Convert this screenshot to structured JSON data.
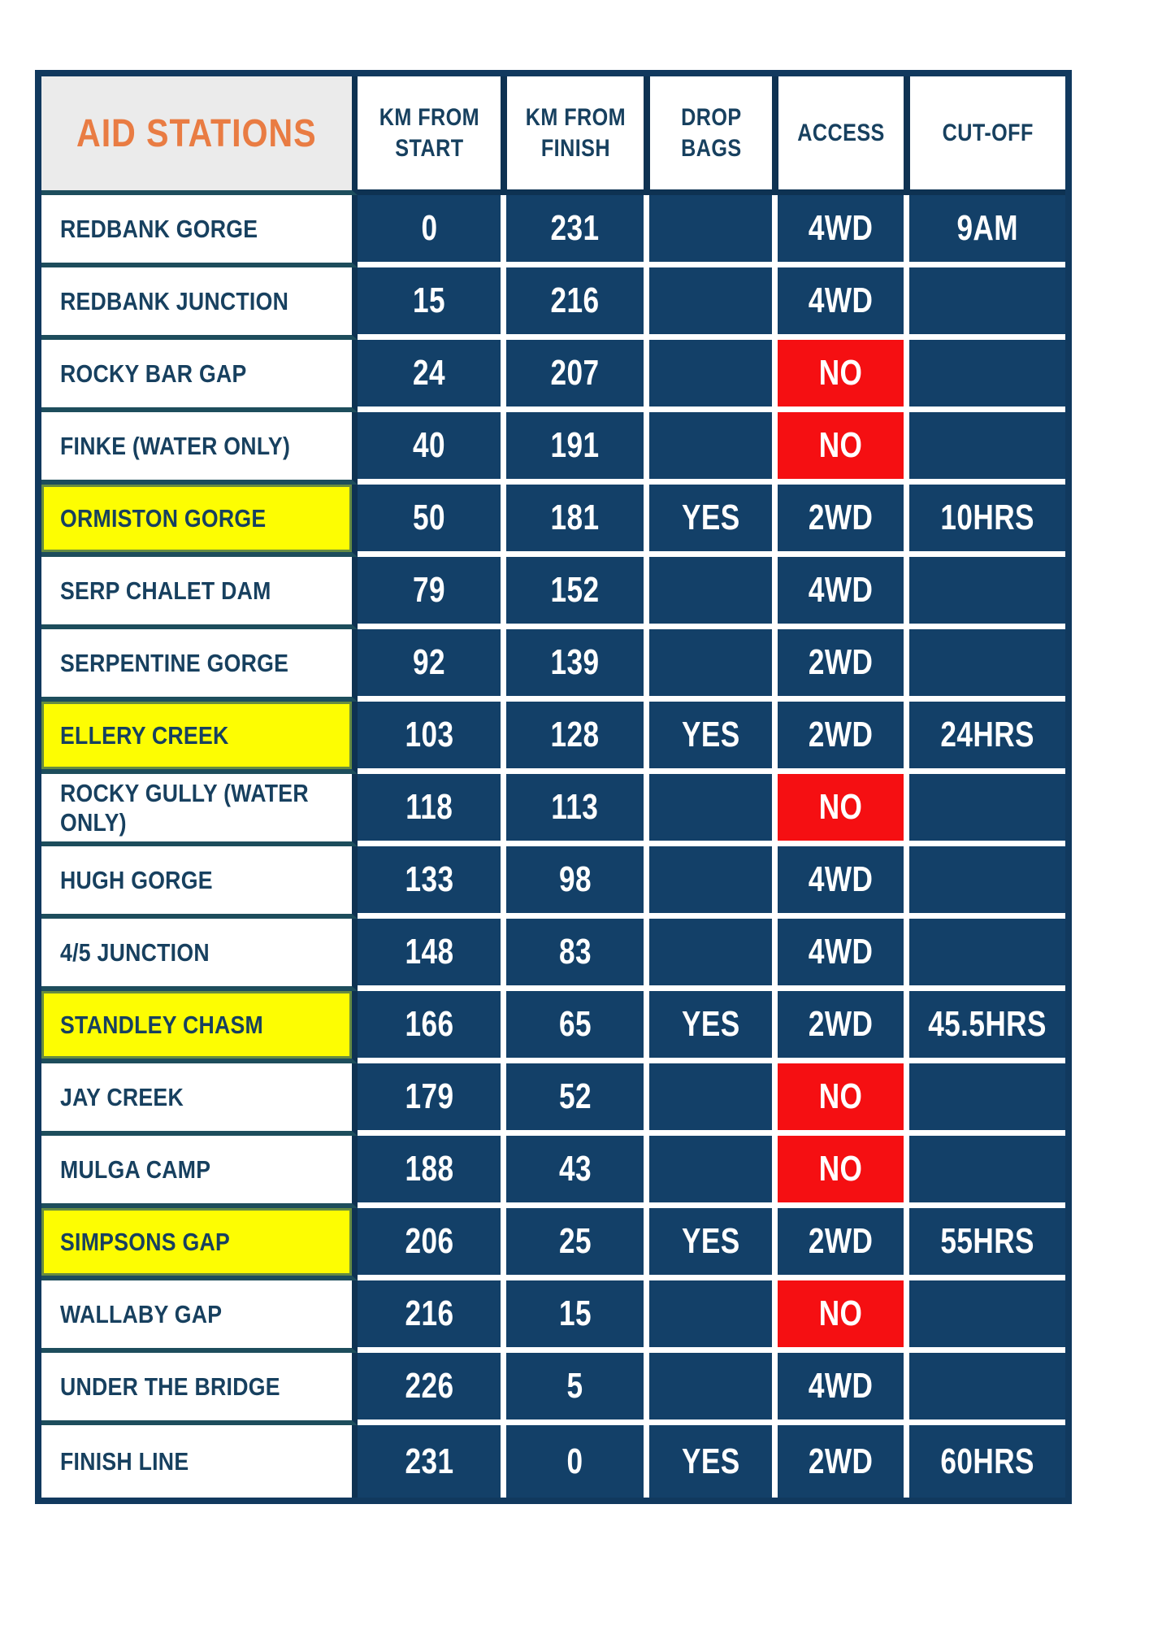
{
  "table": {
    "title": "AID STATIONS",
    "header": {
      "aid_stations": "AID STATIONS",
      "km_from_start": "KM FROM\nSTART",
      "km_from_finish": "KM FROM\nFINISH",
      "drop_bags": "DROP\nBAGS",
      "access": "ACCESS",
      "cut_off": "CUT-OFF"
    },
    "colors": {
      "navy": "#134068",
      "separator_navy": "#0e3252",
      "row_separator_teal": "#1d4d5c",
      "header_gray": "#ebebeb",
      "title_orange": "#e97c43",
      "highlight_yellow": "#fdfd02",
      "alert_red": "#f50f12",
      "gridline_white": "#ffffff"
    },
    "rows": [
      {
        "name": "REDBANK GORGE",
        "km_from_start": "0",
        "km_from_finish": "231",
        "drop_bags": "",
        "access": "4WD",
        "access_alert": false,
        "cut_off": "9AM",
        "highlight": false
      },
      {
        "name": "REDBANK JUNCTION",
        "km_from_start": "15",
        "km_from_finish": "216",
        "drop_bags": "",
        "access": "4WD",
        "access_alert": false,
        "cut_off": "",
        "highlight": false
      },
      {
        "name": "ROCKY BAR GAP",
        "km_from_start": "24",
        "km_from_finish": "207",
        "drop_bags": "",
        "access": "NO",
        "access_alert": true,
        "cut_off": "",
        "highlight": false
      },
      {
        "name": "FINKE (WATER ONLY)",
        "km_from_start": "40",
        "km_from_finish": "191",
        "drop_bags": "",
        "access": "NO",
        "access_alert": true,
        "cut_off": "",
        "highlight": false
      },
      {
        "name": "ORMISTON GORGE",
        "km_from_start": "50",
        "km_from_finish": "181",
        "drop_bags": "YES",
        "access": "2WD",
        "access_alert": false,
        "cut_off": "10HRS",
        "highlight": true
      },
      {
        "name": "SERP CHALET DAM",
        "km_from_start": "79",
        "km_from_finish": "152",
        "drop_bags": "",
        "access": "4WD",
        "access_alert": false,
        "cut_off": "",
        "highlight": false
      },
      {
        "name": "SERPENTINE GORGE",
        "km_from_start": "92",
        "km_from_finish": "139",
        "drop_bags": "",
        "access": "2WD",
        "access_alert": false,
        "cut_off": "",
        "highlight": false
      },
      {
        "name": "ELLERY CREEK",
        "km_from_start": "103",
        "km_from_finish": "128",
        "drop_bags": "YES",
        "access": "2WD",
        "access_alert": false,
        "cut_off": "24HRS",
        "highlight": true
      },
      {
        "name": "ROCKY GULLY (WATER ONLY)",
        "km_from_start": "118",
        "km_from_finish": "113",
        "drop_bags": "",
        "access": "NO",
        "access_alert": true,
        "cut_off": "",
        "highlight": false
      },
      {
        "name": "HUGH GORGE",
        "km_from_start": "133",
        "km_from_finish": "98",
        "drop_bags": "",
        "access": "4WD",
        "access_alert": false,
        "cut_off": "",
        "highlight": false
      },
      {
        "name": "4/5 JUNCTION",
        "km_from_start": "148",
        "km_from_finish": "83",
        "drop_bags": "",
        "access": "4WD",
        "access_alert": false,
        "cut_off": "",
        "highlight": false
      },
      {
        "name": "STANDLEY CHASM",
        "km_from_start": "166",
        "km_from_finish": "65",
        "drop_bags": "YES",
        "access": "2WD",
        "access_alert": false,
        "cut_off": "45.5HRS",
        "highlight": true
      },
      {
        "name": "JAY CREEK",
        "km_from_start": "179",
        "km_from_finish": "52",
        "drop_bags": "",
        "access": "NO",
        "access_alert": true,
        "cut_off": "",
        "highlight": false
      },
      {
        "name": "MULGA CAMP",
        "km_from_start": "188",
        "km_from_finish": "43",
        "drop_bags": "",
        "access": "NO",
        "access_alert": true,
        "cut_off": "",
        "highlight": false
      },
      {
        "name": "SIMPSONS GAP",
        "km_from_start": "206",
        "km_from_finish": "25",
        "drop_bags": "YES",
        "access": "2WD",
        "access_alert": false,
        "cut_off": "55HRS",
        "highlight": true
      },
      {
        "name": "WALLABY GAP",
        "km_from_start": "216",
        "km_from_finish": "15",
        "drop_bags": "",
        "access": "NO",
        "access_alert": true,
        "cut_off": "",
        "highlight": false
      },
      {
        "name": "UNDER THE BRIDGE",
        "km_from_start": "226",
        "km_from_finish": "5",
        "drop_bags": "",
        "access": "4WD",
        "access_alert": false,
        "cut_off": "",
        "highlight": false
      },
      {
        "name": "FINISH LINE",
        "km_from_start": "231",
        "km_from_finish": "0",
        "drop_bags": "YES",
        "access": "2WD",
        "access_alert": false,
        "cut_off": "60HRS",
        "highlight": false
      }
    ]
  }
}
